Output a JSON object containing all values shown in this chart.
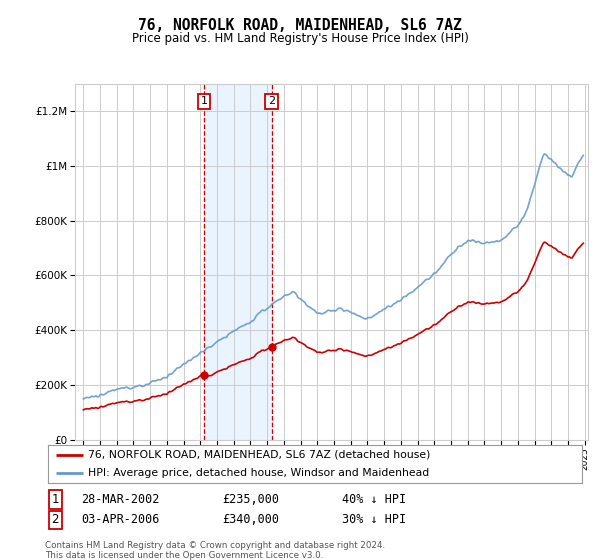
{
  "title": "76, NORFOLK ROAD, MAIDENHEAD, SL6 7AZ",
  "subtitle": "Price paid vs. HM Land Registry's House Price Index (HPI)",
  "legend_line1": "76, NORFOLK ROAD, MAIDENHEAD, SL6 7AZ (detached house)",
  "legend_line2": "HPI: Average price, detached house, Windsor and Maidenhead",
  "footnote": "Contains HM Land Registry data © Crown copyright and database right 2024.\nThis data is licensed under the Open Government Licence v3.0.",
  "event1": {
    "label": "1",
    "date": "28-MAR-2002",
    "price": "£235,000",
    "pct": "40% ↓ HPI",
    "x": 2002.23
  },
  "event2": {
    "label": "2",
    "date": "03-APR-2006",
    "price": "£340,000",
    "pct": "30% ↓ HPI",
    "x": 2006.26
  },
  "price_color": "#cc0000",
  "hpi_color": "#6699cc",
  "shade_color": "#ddeeff",
  "event_box_color": "#cc0000",
  "grid_color": "#cccccc",
  "bg_color": "#ffffff",
  "ylim": [
    0,
    1300000
  ],
  "yticks": [
    0,
    200000,
    400000,
    600000,
    800000,
    1000000,
    1200000
  ],
  "ytick_labels": [
    "£0",
    "£200K",
    "£400K",
    "£600K",
    "£800K",
    "£1M",
    "£1.2M"
  ]
}
